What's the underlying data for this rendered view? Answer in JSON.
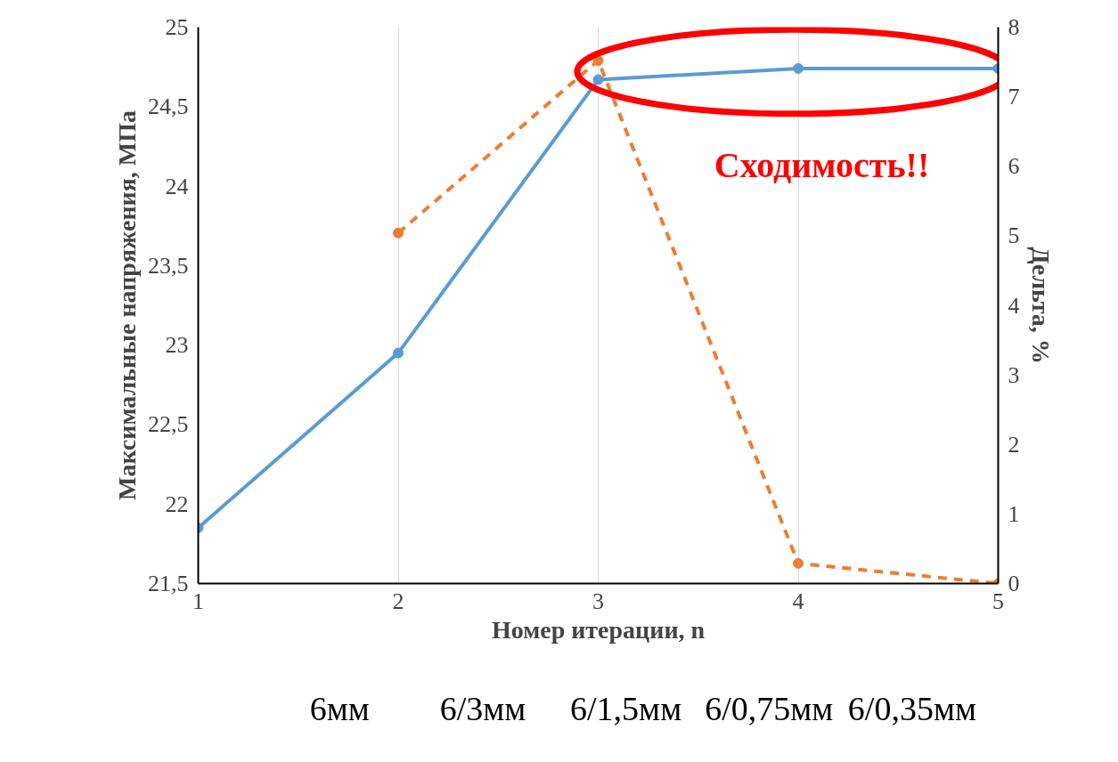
{
  "chart_data": {
    "type": "line",
    "xlabel": "Номер итерации, n",
    "ylabel": "Максимальные напряжения, МПа",
    "y2label": "Дельта, %",
    "x": [
      1,
      2,
      3,
      4,
      5
    ],
    "xlim": [
      1,
      5
    ],
    "xticks": [
      1,
      2,
      3,
      4,
      5
    ],
    "ylim": [
      21.5,
      25
    ],
    "yticks": [
      {
        "value": 21.5,
        "label": "21,5"
      },
      22,
      {
        "value": 22.5,
        "label": "22,5"
      },
      23,
      {
        "value": 23.5,
        "label": "23,5"
      },
      24,
      {
        "value": 24.5,
        "label": "24,5"
      },
      25
    ],
    "y2lim": [
      0,
      8
    ],
    "y2ticks": [
      0,
      1,
      2,
      3,
      4,
      5,
      6,
      7,
      8
    ],
    "grid": "x",
    "marker": "circle",
    "series": [
      {
        "color": "#5b9bd5",
        "values": [
          21.85,
          22.95,
          24.67,
          24.74,
          24.74
        ],
        "line_style": "solid"
      },
      {
        "color": "#ed7d31",
        "values": [
          null,
          5.04,
          7.52,
          0.29,
          0
        ],
        "axis": "y2",
        "line_style": "dashed"
      }
    ],
    "annotations": [
      "Сходимость!!",
      "6мм",
      "6/3мм",
      "6/1,5мм",
      "6/0,75мм",
      "6/0,35мм"
    ]
  }
}
